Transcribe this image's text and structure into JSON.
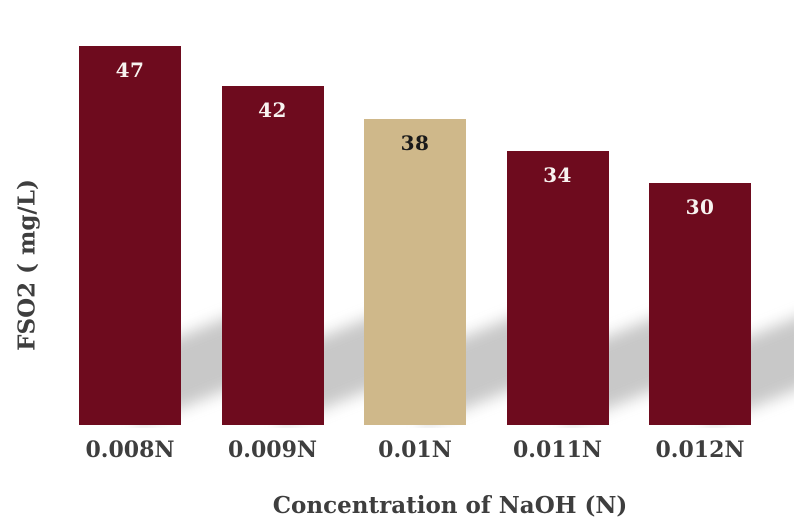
{
  "chart_data": {
    "type": "bar",
    "categories": [
      "0.008N",
      "0.009N",
      "0.01N",
      "0.011N",
      "0.012N"
    ],
    "values": [
      47,
      42,
      38,
      34,
      30
    ],
    "title": "",
    "xlabel": "Concentration of NaOH (N)",
    "ylabel": "FSO2 ( mg/L)",
    "ylim": [
      0,
      52
    ],
    "grid": false,
    "legend": false,
    "axis_lines": false,
    "data_labels": true,
    "bar_colors": [
      "#6e0b1e",
      "#6e0b1e",
      "#cfb88a",
      "#6e0b1e",
      "#6e0b1e"
    ],
    "data_label_colors": [
      "#f8f3f0",
      "#f8f3f0",
      "#1a1a1a",
      "#f8f3f0",
      "#f8f3f0"
    ],
    "highlighted_category": "0.01N",
    "bar_shadow": true
  },
  "colors": {
    "background": "#ffffff",
    "bar_primary": "#6e0b1e",
    "bar_highlight": "#cfb88a",
    "axis_text": "#3e3e3e",
    "shadow": "#7d7d7d"
  }
}
